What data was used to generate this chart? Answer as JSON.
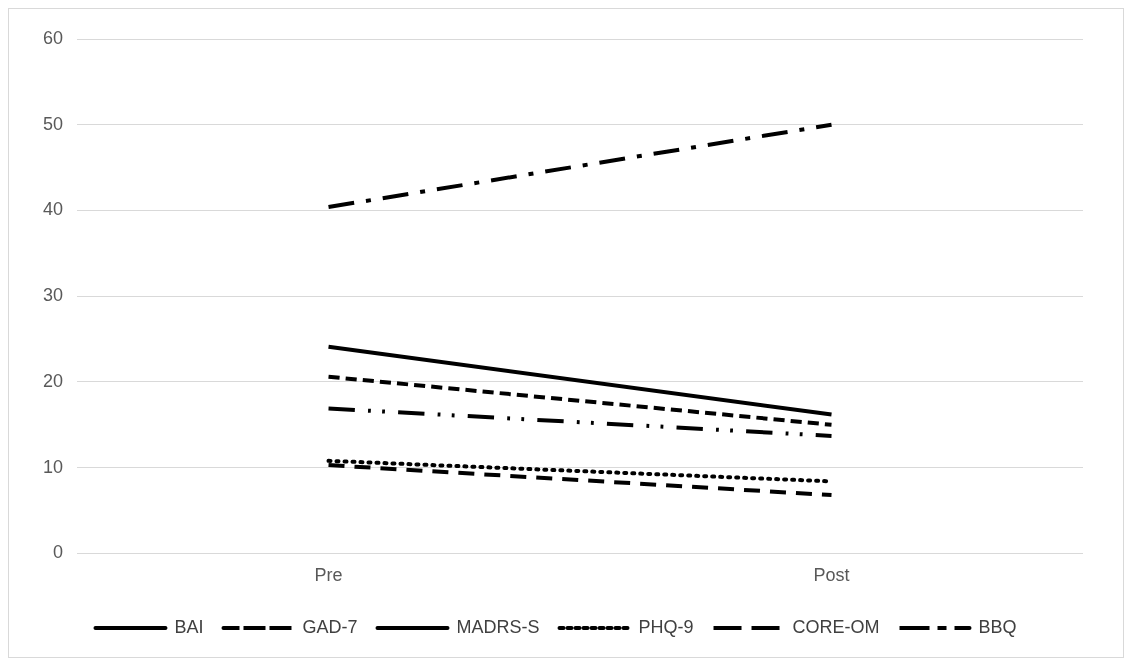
{
  "chart_data": {
    "type": "line",
    "categories": [
      "Pre",
      "Post"
    ],
    "series": [
      {
        "name": "BAI",
        "color": "#000000",
        "line_style": "solid",
        "values": [
          24.1,
          16.2
        ]
      },
      {
        "name": "GAD-7",
        "color": "#000000",
        "line_style": "dashed",
        "values": [
          10.3,
          6.8
        ]
      },
      {
        "name": "MADRS-S",
        "color": "#000000",
        "line_style": "dashed",
        "values": [
          20.6,
          15.0
        ]
      },
      {
        "name": "PHQ-9",
        "color": "#000000",
        "line_style": "dotted",
        "values": [
          10.8,
          8.4
        ]
      },
      {
        "name": "CORE-OM",
        "color": "#000000",
        "line_style": "dashed",
        "values": [
          16.9,
          13.7
        ]
      },
      {
        "name": "BBQ",
        "color": "#000000",
        "line_style": "dashed",
        "values": [
          40.4,
          50.0
        ]
      }
    ],
    "ylim": [
      0,
      60
    ],
    "yticks": [
      0,
      10,
      20,
      30,
      40,
      50,
      60
    ],
    "grid": "y",
    "legend": "bottom",
    "marker": "none"
  }
}
